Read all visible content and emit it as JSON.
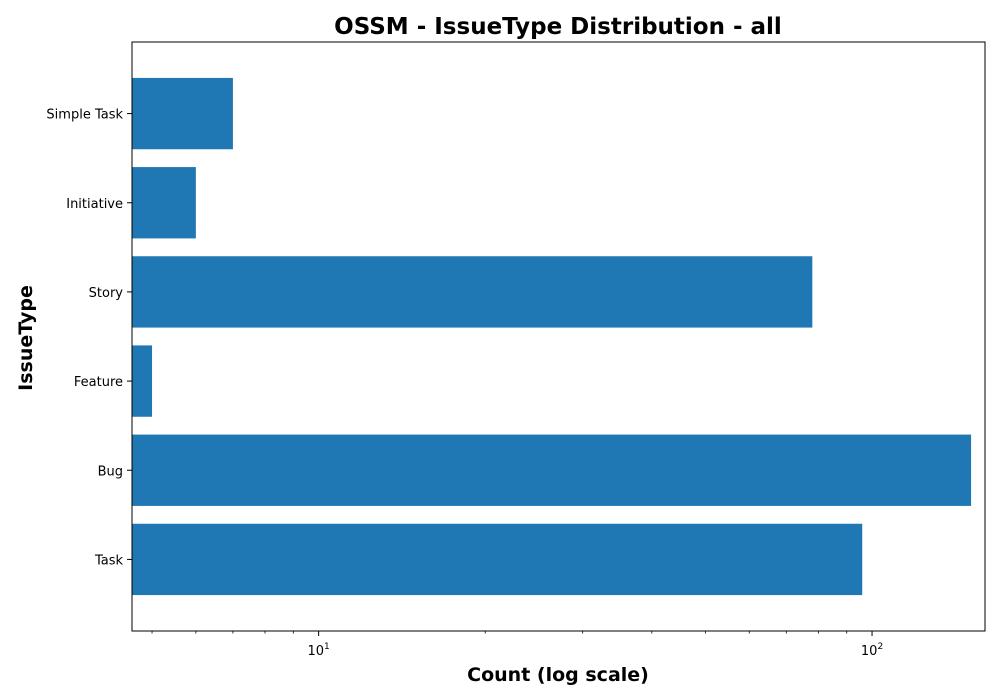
{
  "chart_data": {
    "type": "bar",
    "orientation": "horizontal",
    "title": "OSSM - IssueType Distribution - all",
    "xlabel": "Count (log scale)",
    "ylabel": "IssueType",
    "x_scale": "log",
    "xlim": [
      4.6,
      160
    ],
    "x_tick_values": [
      10,
      100
    ],
    "x_ticks": [
      {
        "base": "10",
        "exp": "1"
      },
      {
        "base": "10",
        "exp": "2"
      }
    ],
    "categories": [
      "Simple Task",
      "Initiative",
      "Story",
      "Feature",
      "Bug",
      "Task"
    ],
    "values": [
      7,
      6,
      78,
      5,
      151,
      96
    ],
    "bar_color": "#1f77b4",
    "grid": false,
    "legend": "none"
  }
}
